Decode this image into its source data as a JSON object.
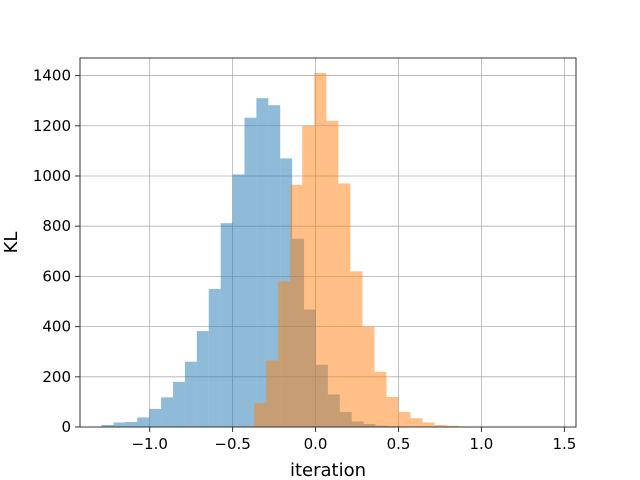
{
  "chart_data": {
    "type": "histogram",
    "title": "",
    "xlabel": "iteration",
    "ylabel": "KL",
    "xlim": [
      -1.42,
      1.57
    ],
    "ylim": [
      0,
      1470
    ],
    "grid": true,
    "legend": "none",
    "xticks": [
      -1.0,
      -0.5,
      0.0,
      0.5,
      1.0,
      1.5
    ],
    "xtick_labels": [
      "−1.0",
      "−0.5",
      "0.0",
      "0.5",
      "1.0",
      "1.5"
    ],
    "yticks": [
      0,
      200,
      400,
      600,
      800,
      1000,
      1200,
      1400
    ],
    "ytick_labels": [
      "0",
      "200",
      "400",
      "600",
      "800",
      "1000",
      "1200",
      "1400"
    ],
    "series": [
      {
        "color": "#1f77b4",
        "opacity": 0.5,
        "bin_start": -1.29,
        "bin_width": 0.0718,
        "counts": [
          8,
          18,
          20,
          38,
          72,
          118,
          180,
          260,
          382,
          550,
          812,
          1006,
          1232,
          1310,
          1282,
          1070,
          750,
          468,
          248,
          130,
          60,
          22,
          12,
          5,
          3,
          1
        ]
      },
      {
        "color": "#ff7f0e",
        "opacity": 0.5,
        "bin_start": -0.37,
        "bin_width": 0.0725,
        "counts": [
          95,
          265,
          580,
          965,
          1200,
          1410,
          1220,
          970,
          620,
          400,
          220,
          120,
          60,
          35,
          18,
          8,
          5,
          2,
          1,
          1
        ]
      }
    ]
  }
}
